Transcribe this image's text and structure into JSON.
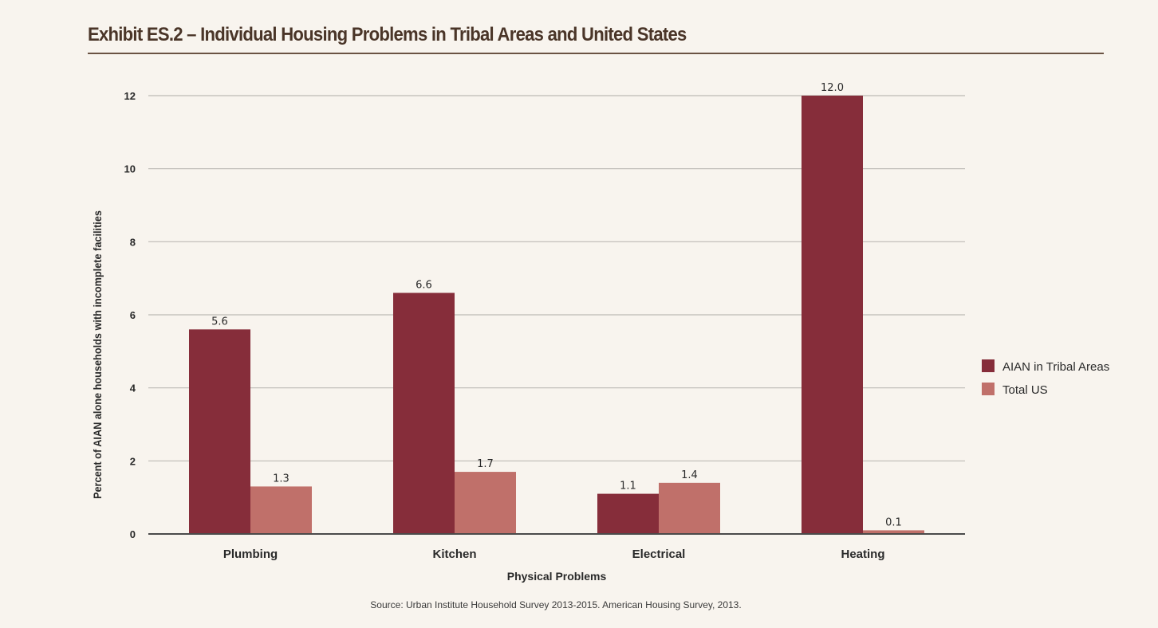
{
  "title": "Exhibit ES.2 – Individual Housing Problems in Tribal Areas and United States",
  "source": "Source: Urban Institute Household Survey 2013-2015. American Housing Survey, 2013.",
  "colors": {
    "aian": "#862d3a",
    "total_us": "#c0706a",
    "grid": "#bdbab4",
    "axis": "#4a4a4a"
  },
  "chart_data": {
    "type": "bar",
    "categories": [
      "Plumbing",
      "Kitchen",
      "Electrical",
      "Heating"
    ],
    "series": [
      {
        "name": "AIAN in Tribal Areas",
        "values": [
          5.6,
          6.6,
          1.1,
          12.0
        ],
        "labels": [
          "5.6",
          "6.6",
          "1.1",
          "12.0"
        ],
        "color": "#862d3a"
      },
      {
        "name": "Total US",
        "values": [
          1.3,
          1.7,
          1.4,
          0.1
        ],
        "labels": [
          "1.3",
          "1.7",
          "1.4",
          "0.1"
        ],
        "color": "#c0706a"
      }
    ],
    "xlabel": "Physical Problems",
    "ylabel": "Percent of AIAN alone households with incomplete facilities",
    "ylim": [
      0,
      12
    ],
    "yticks": [
      0,
      2,
      4,
      6,
      8,
      10,
      12
    ],
    "grid": true,
    "legend_position": "right"
  }
}
